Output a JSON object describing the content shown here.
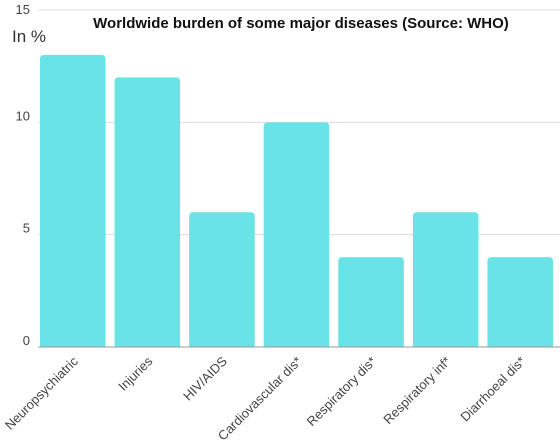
{
  "chart_data": {
    "type": "bar",
    "title": "Worldwide burden of some major diseases (Source: WHO)",
    "unit_label": "In %",
    "categories": [
      "Neuropsychiatric",
      "Injuries",
      "HIV/AIDS",
      "Cardiovascular dis*",
      "Respiratory dis*",
      "Respiratory inf*",
      "Diarrhoeal dis*"
    ],
    "values": [
      13,
      12,
      6,
      10,
      4,
      6,
      4
    ],
    "ylim": [
      0,
      15
    ],
    "yticks": [
      0,
      5,
      10,
      15
    ],
    "grid": true,
    "legend": false,
    "bar_color": "#6ae3e6"
  }
}
